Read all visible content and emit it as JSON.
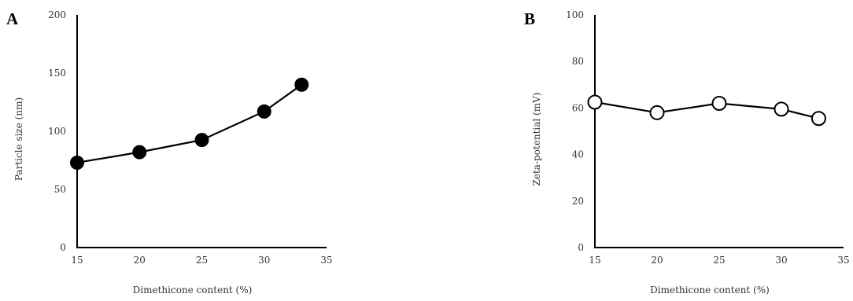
{
  "chart_data": [
    {
      "type": "line",
      "panel_label": "A",
      "xlabel": "Dimethicone content (%)",
      "ylabel": "Particle size (nm)",
      "xlim": [
        15,
        35
      ],
      "ylim": [
        0,
        200
      ],
      "x_ticks": [
        "15",
        "20",
        "25",
        "30",
        "35"
      ],
      "y_ticks": [
        "0",
        "50",
        "100",
        "150",
        "200"
      ],
      "grid": false,
      "marker": "filled-circle",
      "series": [
        {
          "x": [
            15,
            20,
            25,
            30,
            33
          ],
          "y": [
            73,
            82,
            92.5,
            117,
            140
          ]
        }
      ]
    },
    {
      "type": "line",
      "panel_label": "B",
      "xlabel": "Dimethicone content (%)",
      "ylabel": "Zeta-potential (mV)",
      "xlim": [
        15,
        35
      ],
      "ylim": [
        0,
        100
      ],
      "x_ticks": [
        "15",
        "20",
        "25",
        "30",
        "35"
      ],
      "y_ticks": [
        "0",
        "20",
        "40",
        "60",
        "80",
        "100"
      ],
      "grid": false,
      "marker": "open-circle",
      "series": [
        {
          "x": [
            15,
            20,
            25,
            30,
            33
          ],
          "y": [
            62.5,
            58,
            62,
            59.5,
            55.5
          ]
        }
      ]
    }
  ]
}
